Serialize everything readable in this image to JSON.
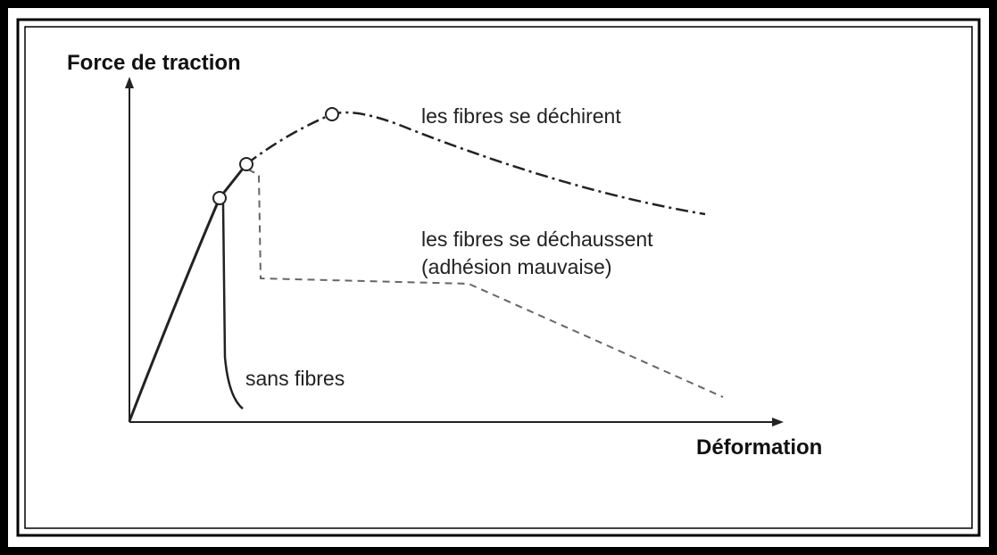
{
  "axes": {
    "y_label": "Force de traction",
    "x_label": "Déformation"
  },
  "curves": [
    {
      "lines": [
        "les fibres se déchirent"
      ]
    },
    {
      "lines": [
        "les fibres se déchaussent",
        "(adhésion mauvaise)"
      ]
    },
    {
      "lines": [
        "sans fibres"
      ]
    }
  ]
}
